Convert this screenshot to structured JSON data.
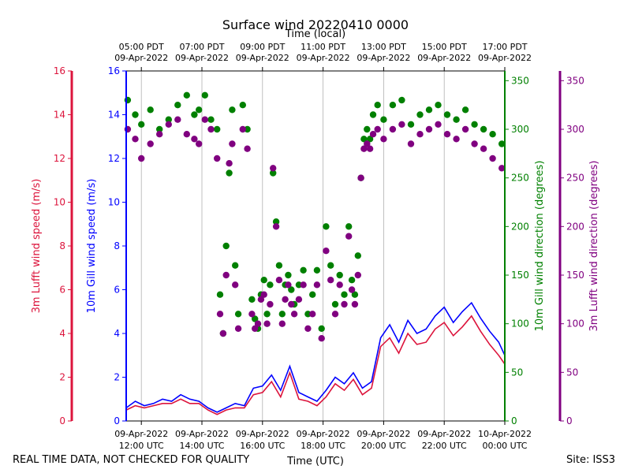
{
  "chart_data": {
    "type": "scatter",
    "title": "Surface wind 20220410 0000",
    "top_axis_label": "Time (local)",
    "xlabel": "Time (UTC)",
    "x_range_hours_utc": [
      11.5,
      24.0
    ],
    "local_offset_hours": -7,
    "bottom_ticks": [
      {
        "hour": 12,
        "date": "09-Apr-2022",
        "time": "12:00 UTC"
      },
      {
        "hour": 14,
        "date": "09-Apr-2022",
        "time": "14:00 UTC"
      },
      {
        "hour": 16,
        "date": "09-Apr-2022",
        "time": "16:00 UTC"
      },
      {
        "hour": 18,
        "date": "09-Apr-2022",
        "time": "18:00 UTC"
      },
      {
        "hour": 20,
        "date": "09-Apr-2022",
        "time": "20:00 UTC"
      },
      {
        "hour": 22,
        "date": "09-Apr-2022",
        "time": "22:00 UTC"
      },
      {
        "hour": 24,
        "date": "10-Apr-2022",
        "time": "00:00 UTC"
      }
    ],
    "top_ticks": [
      {
        "hour": 12,
        "time": "05:00 PDT",
        "date": "09-Apr-2022"
      },
      {
        "hour": 14,
        "time": "07:00 PDT",
        "date": "09-Apr-2022"
      },
      {
        "hour": 16,
        "time": "09:00 PDT",
        "date": "09-Apr-2022"
      },
      {
        "hour": 18,
        "time": "11:00 PDT",
        "date": "09-Apr-2022"
      },
      {
        "hour": 20,
        "time": "13:00 PDT",
        "date": "09-Apr-2022"
      },
      {
        "hour": 22,
        "time": "15:00 PDT",
        "date": "09-Apr-2022"
      },
      {
        "hour": 24,
        "time": "17:00 PDT",
        "date": "09-Apr-2022"
      }
    ],
    "axes": {
      "lufft_speed": {
        "label": "3m Lufft wind speed (m/s)",
        "range": [
          0,
          16
        ],
        "ticks": [
          "0",
          "2",
          "4",
          "6",
          "8",
          "10",
          "12",
          "14",
          "16"
        ],
        "color": "#dc143c"
      },
      "gill_speed": {
        "label": "10m Gill wind speed (m/s)",
        "range": [
          0,
          16
        ],
        "ticks": [
          "0",
          "2",
          "4",
          "6",
          "8",
          "10",
          "12",
          "14",
          "16"
        ],
        "color": "#0000ff"
      },
      "gill_dir": {
        "label": "10m Gill wind direction (degrees)",
        "range": [
          0,
          360
        ],
        "ticks": [
          "0",
          "50",
          "100",
          "150",
          "200",
          "250",
          "300",
          "350"
        ],
        "color": "#008000"
      },
      "lufft_dir": {
        "label": "3m Lufft wind direction (degrees)",
        "range": [
          0,
          360
        ],
        "ticks": [
          "0",
          "50",
          "100",
          "150",
          "200",
          "250",
          "300",
          "350"
        ],
        "color": "#800080"
      }
    },
    "series": [
      {
        "name": "10m Gill wind direction",
        "kind": "points",
        "axis": "gill_dir",
        "color": "#008000",
        "x": [
          11.55,
          11.8,
          12.0,
          12.3,
          12.6,
          12.9,
          13.2,
          13.5,
          13.75,
          13.9,
          14.1,
          14.3,
          14.5,
          14.6,
          14.7,
          14.8,
          14.9,
          15.0,
          15.1,
          15.2,
          15.35,
          15.5,
          15.65,
          15.75,
          15.85,
          15.95,
          16.05,
          16.15,
          16.25,
          16.35,
          16.45,
          16.55,
          16.65,
          16.75,
          16.85,
          16.95,
          17.05,
          17.2,
          17.35,
          17.5,
          17.65,
          17.8,
          17.95,
          18.1,
          18.25,
          18.4,
          18.55,
          18.7,
          18.85,
          18.95,
          19.05,
          19.15,
          19.25,
          19.35,
          19.45,
          19.55,
          19.65,
          19.8,
          20.0,
          20.3,
          20.6,
          20.9,
          21.2,
          21.5,
          21.8,
          22.1,
          22.4,
          22.7,
          23.0,
          23.3,
          23.6,
          23.9
        ],
        "y": [
          330,
          315,
          305,
          320,
          300,
          310,
          325,
          335,
          315,
          320,
          335,
          310,
          300,
          130,
          90,
          180,
          255,
          320,
          160,
          110,
          325,
          300,
          125,
          105,
          95,
          130,
          145,
          110,
          140,
          255,
          205,
          160,
          110,
          140,
          150,
          135,
          120,
          140,
          155,
          110,
          130,
          155,
          95,
          200,
          160,
          120,
          150,
          130,
          200,
          145,
          130,
          170,
          250,
          290,
          300,
          290,
          315,
          325,
          310,
          325,
          330,
          305,
          315,
          320,
          325,
          315,
          310,
          320,
          305,
          300,
          295,
          285
        ]
      },
      {
        "name": "3m Lufft wind direction",
        "kind": "points",
        "axis": "lufft_dir",
        "color": "#800080",
        "x": [
          11.55,
          11.8,
          12.0,
          12.3,
          12.6,
          12.9,
          13.2,
          13.5,
          13.75,
          13.9,
          14.1,
          14.3,
          14.5,
          14.6,
          14.7,
          14.8,
          14.9,
          15.0,
          15.1,
          15.2,
          15.35,
          15.5,
          15.65,
          15.75,
          15.85,
          15.95,
          16.05,
          16.15,
          16.25,
          16.35,
          16.45,
          16.55,
          16.65,
          16.75,
          16.85,
          16.95,
          17.05,
          17.2,
          17.35,
          17.5,
          17.65,
          17.8,
          17.95,
          18.1,
          18.25,
          18.4,
          18.55,
          18.7,
          18.85,
          18.95,
          19.05,
          19.15,
          19.25,
          19.35,
          19.45,
          19.55,
          19.65,
          19.8,
          20.0,
          20.3,
          20.6,
          20.9,
          21.2,
          21.5,
          21.8,
          22.1,
          22.4,
          22.7,
          23.0,
          23.3,
          23.6,
          23.9
        ],
        "y": [
          300,
          290,
          270,
          285,
          295,
          305,
          310,
          295,
          290,
          285,
          310,
          300,
          270,
          110,
          90,
          150,
          265,
          285,
          140,
          95,
          300,
          280,
          110,
          95,
          100,
          125,
          130,
          100,
          120,
          260,
          200,
          145,
          100,
          125,
          140,
          120,
          110,
          125,
          140,
          95,
          110,
          140,
          85,
          175,
          145,
          110,
          140,
          120,
          190,
          135,
          120,
          150,
          250,
          280,
          285,
          280,
          295,
          300,
          290,
          300,
          305,
          285,
          295,
          300,
          305,
          295,
          290,
          300,
          285,
          280,
          270,
          260
        ]
      },
      {
        "name": "10m Gill wind speed",
        "kind": "line",
        "axis": "gill_speed",
        "color": "#0000ff",
        "x": [
          11.5,
          11.8,
          12.1,
          12.4,
          12.7,
          13.0,
          13.3,
          13.6,
          13.9,
          14.2,
          14.5,
          14.8,
          15.1,
          15.4,
          15.7,
          16.0,
          16.3,
          16.6,
          16.9,
          17.2,
          17.5,
          17.8,
          18.1,
          18.4,
          18.7,
          19.0,
          19.3,
          19.6,
          19.9,
          20.2,
          20.5,
          20.8,
          21.1,
          21.4,
          21.7,
          22.0,
          22.3,
          22.6,
          22.9,
          23.2,
          23.5,
          23.8,
          24.0
        ],
        "y": [
          0.6,
          0.9,
          0.7,
          0.8,
          1.0,
          0.9,
          1.2,
          1.0,
          0.9,
          0.6,
          0.4,
          0.6,
          0.8,
          0.7,
          1.5,
          1.6,
          2.1,
          1.4,
          2.5,
          1.3,
          1.1,
          0.9,
          1.4,
          2.0,
          1.7,
          2.2,
          1.5,
          1.8,
          3.8,
          4.4,
          3.6,
          4.6,
          4.0,
          4.2,
          4.8,
          5.2,
          4.5,
          5.0,
          5.4,
          4.7,
          4.1,
          3.6,
          3.0
        ]
      },
      {
        "name": "3m Lufft wind speed",
        "kind": "line",
        "axis": "lufft_speed",
        "color": "#dc143c",
        "x": [
          11.5,
          11.8,
          12.1,
          12.4,
          12.7,
          13.0,
          13.3,
          13.6,
          13.9,
          14.2,
          14.5,
          14.8,
          15.1,
          15.4,
          15.7,
          16.0,
          16.3,
          16.6,
          16.9,
          17.2,
          17.5,
          17.8,
          18.1,
          18.4,
          18.7,
          19.0,
          19.3,
          19.6,
          19.9,
          20.2,
          20.5,
          20.8,
          21.1,
          21.4,
          21.7,
          22.0,
          22.3,
          22.6,
          22.9,
          23.2,
          23.5,
          23.8,
          24.0
        ],
        "y": [
          0.5,
          0.7,
          0.6,
          0.7,
          0.8,
          0.8,
          1.0,
          0.8,
          0.8,
          0.5,
          0.3,
          0.5,
          0.6,
          0.6,
          1.2,
          1.3,
          1.8,
          1.1,
          2.2,
          1.0,
          0.9,
          0.7,
          1.1,
          1.7,
          1.4,
          1.9,
          1.2,
          1.5,
          3.4,
          3.8,
          3.1,
          4.0,
          3.5,
          3.6,
          4.2,
          4.5,
          3.9,
          4.3,
          4.8,
          4.1,
          3.5,
          3.0,
          2.6
        ]
      }
    ]
  },
  "footer": {
    "disclaimer": "REAL TIME DATA, NOT CHECKED FOR QUALITY",
    "site": "Site: ISS3"
  }
}
